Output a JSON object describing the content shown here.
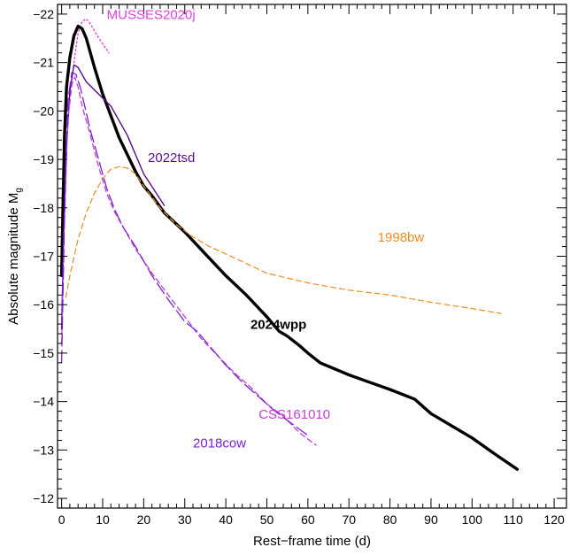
{
  "chart_data": {
    "type": "line",
    "xlabel": "Rest−frame time (d)",
    "ylabel": "Absolute magnitude M",
    "ylabel_subscript": "g",
    "xlim": [
      -1,
      123
    ],
    "ylim": [
      -11.8,
      -22.2
    ],
    "y_inverted": true,
    "x_ticks": [
      0,
      10,
      20,
      30,
      40,
      50,
      60,
      70,
      80,
      90,
      100,
      110,
      120
    ],
    "x_tick_labels": [
      "0",
      "10",
      "20",
      "30",
      "40",
      "50",
      "60",
      "70",
      "80",
      "90",
      "100",
      "110",
      "120"
    ],
    "y_ticks": [
      -12,
      -13,
      -14,
      -15,
      -16,
      -17,
      -18,
      -19,
      -20,
      -21,
      -22
    ],
    "y_tick_labels": [
      "−12",
      "−13",
      "−14",
      "−15",
      "−16",
      "−17",
      "−18",
      "−19",
      "−20",
      "−21",
      "−22"
    ],
    "grid": false,
    "series": [
      {
        "name": "MUSSES2020j",
        "color": "#e23de2",
        "dash": "dotted",
        "width": 1.4,
        "label_at": [
          11,
          -21.9
        ],
        "label_anchor": "start",
        "points": [
          [
            3.0,
            -21.0
          ],
          [
            4.0,
            -21.6
          ],
          [
            5.0,
            -21.85
          ],
          [
            6.0,
            -21.9
          ],
          [
            7.0,
            -21.8
          ],
          [
            8.0,
            -21.65
          ],
          [
            9.5,
            -21.45
          ],
          [
            11.5,
            -21.2
          ]
        ]
      },
      {
        "name": "2024wpp",
        "color": "#000000",
        "dash": "solid",
        "width": 3.4,
        "label_bold": true,
        "label_at": [
          46,
          -15.5
        ],
        "label_anchor": "start",
        "points": [
          [
            0.0,
            -16.6
          ],
          [
            0.3,
            -17.9
          ],
          [
            0.7,
            -19.5
          ],
          [
            1.2,
            -20.5
          ],
          [
            2.0,
            -21.1
          ],
          [
            3.0,
            -21.55
          ],
          [
            4.0,
            -21.75
          ],
          [
            5.0,
            -21.7
          ],
          [
            6.0,
            -21.5
          ],
          [
            7.0,
            -21.2
          ],
          [
            8.0,
            -20.9
          ],
          [
            10.0,
            -20.35
          ],
          [
            12.0,
            -19.9
          ],
          [
            14.0,
            -19.45
          ],
          [
            16.0,
            -19.1
          ],
          [
            18.0,
            -18.75
          ],
          [
            20.0,
            -18.45
          ],
          [
            22.0,
            -18.25
          ],
          [
            25.0,
            -17.9
          ],
          [
            30.0,
            -17.5
          ],
          [
            35.0,
            -17.05
          ],
          [
            40.0,
            -16.6
          ],
          [
            45.0,
            -16.2
          ],
          [
            50.0,
            -15.75
          ],
          [
            53.0,
            -15.45
          ],
          [
            55.0,
            -15.35
          ],
          [
            58.0,
            -15.15
          ],
          [
            60.0,
            -15.0
          ],
          [
            63.0,
            -14.8
          ],
          [
            70.0,
            -14.55
          ],
          [
            75.0,
            -14.4
          ],
          [
            80.0,
            -14.25
          ],
          [
            86.0,
            -14.05
          ],
          [
            90.0,
            -13.75
          ],
          [
            100.0,
            -13.25
          ],
          [
            105.0,
            -12.95
          ],
          [
            111.0,
            -12.6
          ]
        ]
      },
      {
        "name": "2022tsd",
        "color": "#5a0a8e",
        "dash": "solid",
        "width": 1.4,
        "label_at": [
          21,
          -18.95
        ],
        "label_anchor": "start",
        "points": [
          [
            0.0,
            -15.5
          ],
          [
            0.5,
            -17.5
          ],
          [
            1.0,
            -19.0
          ],
          [
            2.0,
            -20.4
          ],
          [
            3.0,
            -20.95
          ],
          [
            4.0,
            -20.9
          ],
          [
            6.0,
            -20.6
          ],
          [
            9.0,
            -20.35
          ],
          [
            12.0,
            -20.1
          ],
          [
            16.0,
            -19.5
          ],
          [
            20.0,
            -18.7
          ],
          [
            25.0,
            -18.05
          ]
        ]
      },
      {
        "name": "1998bw",
        "color": "#ef8c1f",
        "dash": "dashed",
        "width": 1.2,
        "label_at": [
          77,
          -17.3
        ],
        "label_anchor": "start",
        "points": [
          [
            1.0,
            -16.15
          ],
          [
            2.0,
            -16.6
          ],
          [
            4.0,
            -17.35
          ],
          [
            6.0,
            -17.9
          ],
          [
            8.0,
            -18.3
          ],
          [
            10.0,
            -18.6
          ],
          [
            12.0,
            -18.8
          ],
          [
            14.0,
            -18.85
          ],
          [
            16.0,
            -18.82
          ],
          [
            18.0,
            -18.7
          ],
          [
            20.0,
            -18.45
          ],
          [
            24.0,
            -18.0
          ],
          [
            28.0,
            -17.65
          ],
          [
            32.0,
            -17.4
          ],
          [
            36.0,
            -17.2
          ],
          [
            40.0,
            -17.05
          ],
          [
            45.0,
            -16.85
          ],
          [
            50.0,
            -16.65
          ],
          [
            60.0,
            -16.45
          ],
          [
            70.0,
            -16.3
          ],
          [
            80.0,
            -16.2
          ],
          [
            90.0,
            -16.05
          ],
          [
            100.0,
            -15.92
          ],
          [
            107.0,
            -15.82
          ]
        ]
      },
      {
        "name": "CSS161010",
        "color": "#c33fd0",
        "dash": "dashed",
        "width": 1.3,
        "label_at": [
          48,
          -13.65
        ],
        "label_anchor": "start",
        "points": [
          [
            0.0,
            -15.2
          ],
          [
            0.6,
            -17.5
          ],
          [
            1.5,
            -19.8
          ],
          [
            2.5,
            -20.55
          ],
          [
            3.2,
            -20.7
          ],
          [
            4.0,
            -20.5
          ],
          [
            5.0,
            -20.1
          ],
          [
            7.0,
            -19.5
          ],
          [
            9.0,
            -18.85
          ],
          [
            11.0,
            -18.3
          ],
          [
            13.0,
            -17.9
          ],
          [
            15.0,
            -17.6
          ],
          [
            18.0,
            -17.15
          ],
          [
            22.0,
            -16.65
          ],
          [
            26.0,
            -16.2
          ],
          [
            30.0,
            -15.75
          ],
          [
            34.0,
            -15.3
          ],
          [
            38.0,
            -14.95
          ],
          [
            42.0,
            -14.6
          ],
          [
            46.0,
            -14.3
          ],
          [
            50.0,
            -13.95
          ],
          [
            54.0,
            -13.7
          ],
          [
            58.0,
            -13.35
          ],
          [
            62.0,
            -13.1
          ]
        ]
      },
      {
        "name": "2018cow",
        "color": "#7a22d6",
        "dash": "longdash",
        "width": 1.3,
        "label_at": [
          32,
          -13.05
        ],
        "label_anchor": "start",
        "points": [
          [
            0.0,
            -14.8
          ],
          [
            0.7,
            -17.8
          ],
          [
            1.5,
            -20.2
          ],
          [
            2.5,
            -20.8
          ],
          [
            3.5,
            -20.75
          ],
          [
            4.5,
            -20.5
          ],
          [
            5.5,
            -20.15
          ],
          [
            7.0,
            -19.6
          ],
          [
            9.0,
            -19.0
          ],
          [
            11.0,
            -18.4
          ],
          [
            13.0,
            -17.95
          ],
          [
            15.0,
            -17.6
          ],
          [
            18.0,
            -17.2
          ],
          [
            22.0,
            -16.6
          ],
          [
            26.0,
            -16.1
          ],
          [
            30.0,
            -15.65
          ],
          [
            33.0,
            -15.45
          ],
          [
            36.0,
            -15.15
          ],
          [
            40.0,
            -14.75
          ],
          [
            44.0,
            -14.4
          ],
          [
            48.0,
            -14.1
          ],
          [
            52.0,
            -13.8
          ],
          [
            56.0,
            -13.55
          ],
          [
            60.0,
            -13.3
          ]
        ]
      }
    ]
  }
}
